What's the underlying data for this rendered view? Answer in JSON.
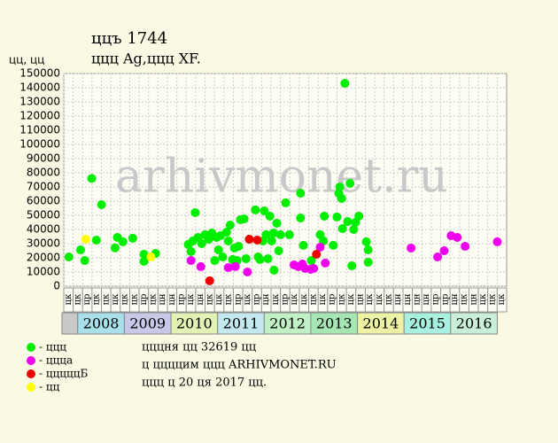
{
  "chart_data": {
    "type": "scatter",
    "title": "ццъ 1744",
    "subtitle": "ццц Ag,ццц XF.",
    "y_label": "цц, цц",
    "watermark": "arhivmonet.ru",
    "xlim": [
      2007.7,
      2017.2
    ],
    "ylim": [
      0,
      150000
    ],
    "yticks": [
      0,
      10000,
      20000,
      30000,
      40000,
      50000,
      60000,
      70000,
      80000,
      90000,
      100000,
      110000,
      120000,
      130000,
      140000,
      150000
    ],
    "grid": true,
    "period_labels": [
      "цк",
      "цк",
      "цр",
      "цк",
      "цк",
      "цк",
      "цк",
      "цк",
      "цр",
      "цк",
      "цн",
      "цн",
      "цр",
      "цк",
      "цн",
      "цк",
      "цк",
      "цк",
      "цр",
      "цк",
      "цр",
      "цн",
      "цк",
      "цр",
      "цк",
      "цк",
      "цк",
      "цк",
      "цр",
      "цк",
      "цк",
      "цн",
      "цк",
      "цк",
      "цк",
      "цн",
      "цн",
      "цн",
      "цн",
      "цр",
      "цр",
      "цн",
      "цк",
      "цн",
      "цк",
      "цк",
      "цк"
    ],
    "years": [
      {
        "value": 2008,
        "label": "2008",
        "color": "#a8dfe8"
      },
      {
        "value": 2009,
        "label": "2009",
        "color": "#c8c8e8"
      },
      {
        "value": 2010,
        "label": "2010",
        "color": "#e2f2b4"
      },
      {
        "value": 2011,
        "label": "2011",
        "color": "#c4e8f0"
      },
      {
        "value": 2012,
        "label": "2012",
        "color": "#c0f0c4"
      },
      {
        "value": 2013,
        "label": "2013",
        "color": "#a6e6b2"
      },
      {
        "value": 2014,
        "label": "2014",
        "color": "#eef2a4"
      },
      {
        "value": 2015,
        "label": "2015",
        "color": "#a8f0e0"
      },
      {
        "value": 2016,
        "label": "2016",
        "color": "#c8f0d8"
      }
    ],
    "series": [
      {
        "name": "- ццц",
        "color": "#00ee00",
        "x": [
          2007.81,
          2008.06,
          2008.15,
          2008.3,
          2008.4,
          2008.51,
          2008.8,
          2008.85,
          2008.97,
          2009.18,
          2009.42,
          2009.42,
          2009.67,
          2010.37,
          2010.43,
          2010.47,
          2010.52,
          2010.58,
          2010.66,
          2010.73,
          2010.81,
          2010.88,
          2010.94,
          2010.98,
          2011.02,
          2011.06,
          2011.11,
          2011.19,
          2011.23,
          2011.27,
          2011.32,
          2011.36,
          2011.42,
          2011.45,
          2011.49,
          2011.57,
          2011.61,
          2011.68,
          2011.81,
          2011.87,
          2011.91,
          2011.97,
          2012.0,
          2012.04,
          2012.08,
          2012.12,
          2012.16,
          2012.2,
          2012.21,
          2012.27,
          2012.31,
          2012.35,
          2012.46,
          2012.54,
          2012.78,
          2012.78,
          2012.84,
          2013.01,
          2013.2,
          2013.27,
          2013.29,
          2013.48,
          2013.56,
          2013.6,
          2013.62,
          2013.66,
          2013.68,
          2013.73,
          2013.79,
          2013.84,
          2013.88,
          2013.92,
          2013.96,
          2014.03,
          2014.19,
          2014.23,
          2014.23
        ],
        "values": [
          20600,
          25600,
          18100,
          76000,
          32500,
          57500,
          27000,
          34400,
          31300,
          33800,
          22500,
          17500,
          23100,
          29400,
          24400,
          31900,
          51900,
          34400,
          30000,
          36300,
          33100,
          37500,
          18100,
          34400,
          25600,
          35600,
          20600,
          38100,
          31900,
          43100,
          18800,
          26900,
          18100,
          28100,
          46900,
          47500,
          19400,
          33100,
          53800,
          20600,
          18800,
          31900,
          53100,
          36300,
          19400,
          49400,
          31900,
          37500,
          11300,
          44400,
          25000,
          36300,
          58800,
          36300,
          65600,
          48100,
          28800,
          18100,
          36300,
          31900,
          49400,
          28800,
          48800,
          65600,
          70000,
          61900,
          40600,
          143100,
          45600,
          72500,
          14400,
          40000,
          45000,
          49400,
          31300,
          25600,
          16900
        ]
      },
      {
        "name": "- ццца",
        "color": "#ee00ee",
        "x": [
          2010.43,
          2010.64,
          2011.23,
          2011.38,
          2011.64,
          2012.64,
          2012.73,
          2012.82,
          2012.88,
          2013.0,
          2013.06,
          2013.2,
          2013.31,
          2015.15,
          2015.72,
          2015.86,
          2016.01,
          2016.14,
          2016.31,
          2017.0
        ],
        "values": [
          18100,
          13800,
          13100,
          13800,
          10000,
          15000,
          13800,
          15600,
          12500,
          11900,
          12500,
          27500,
          16300,
          26900,
          20600,
          25000,
          35600,
          34400,
          28100,
          31300
        ]
      },
      {
        "name": "- цццццБ",
        "color": "#ee0000",
        "x": [
          2010.83,
          2011.68,
          2011.85,
          2013.12
        ],
        "values": [
          3800,
          33100,
          32500,
          22500
        ]
      },
      {
        "name": "- цц",
        "color": "#ffff00",
        "x": [
          2008.17,
          2009.57
        ],
        "values": [
          33100,
          20600
        ]
      }
    ],
    "notes": [
      "цццня цц 32619 цц",
      "ц ццццим ццц ARHIVMONET.RU",
      "ццц ц 20 ця 2017 цц."
    ]
  }
}
